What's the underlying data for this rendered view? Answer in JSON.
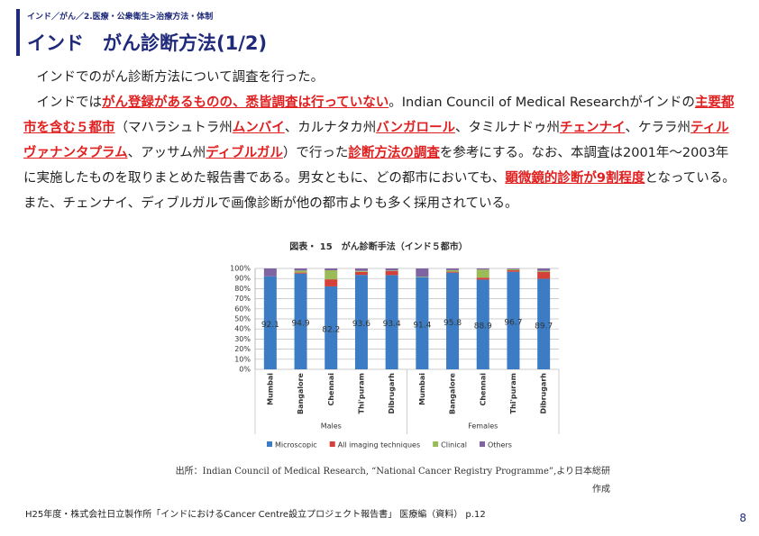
{
  "breadcrumb": "インド／がん／2.医療・公衆衛生>治療方法・体制",
  "title": "インド　がん診断方法(1/2)",
  "paragraphs": [
    [
      "インドでのがん診断方法について調査を行った。"
    ],
    [
      "インドでは",
      {
        "text": "がん登録があるものの、悉皆調査は行っていない",
        "emphasis": true
      },
      "。Indian Council of Medical Researchがインドの",
      {
        "text": "主要都市を含む５都市",
        "emphasis": true
      },
      "（マハラシュトラ州",
      {
        "text": "ムンバイ",
        "emphasis": true
      },
      "、カルナタカ州",
      {
        "text": "バンガロール",
        "emphasis": true
      },
      "、タミルナドゥ州",
      {
        "text": "チェンナイ",
        "emphasis": true
      },
      "、ケララ州",
      {
        "text": "ティルヴァナンタプラム",
        "emphasis": true
      },
      "、アッサム州",
      {
        "text": "ディブルガル",
        "emphasis": true
      },
      "）で行った",
      {
        "text": "診断方法の調査",
        "emphasis": true
      },
      "を参考にする。なお、本調査は2001年～2003年に実施したものを取りまとめた報告書である。男女ともに、どの都市においても、",
      {
        "text": "顕微鏡的診断が9割程度",
        "emphasis": true
      },
      "となっている。また、チェンナイ、ディブルガルで画像診断が他の都市よりも多く採用されている。"
    ]
  ],
  "chart_data": {
    "type": "stacked_bar",
    "title": "図表・ 15　がん診断手法（インド５都市）",
    "categories": [
      "Mumbai",
      "Bangalore",
      "Chennai",
      "Thi'puram",
      "Dibrugarh",
      "Mumbai",
      "Bangalore",
      "Chennai",
      "Thi'puram",
      "Dibrugarh"
    ],
    "groups": [
      "Males",
      "Females"
    ],
    "series": [
      {
        "name": "Microscopic",
        "color": "#3b7cc4",
        "show_labels": true,
        "values": [
          92.1,
          94.9,
          82.2,
          93.6,
          93.4,
          91.4,
          95.8,
          88.9,
          96.7,
          89.7
        ]
      },
      {
        "name": "All imaging techniques",
        "color": "#d2413a",
        "values": [
          0,
          1,
          7,
          3,
          4,
          0,
          1,
          2,
          1.5,
          7
        ]
      },
      {
        "name": "Clinical",
        "color": "#9bbb59",
        "values": [
          0,
          2,
          9,
          1,
          0.5,
          0.5,
          1.5,
          8,
          1,
          1
        ]
      },
      {
        "name": "Others",
        "color": "#8064a2",
        "values": [
          7.9,
          2.1,
          1.8,
          2.4,
          2.1,
          8.1,
          1.7,
          1.1,
          0.8,
          2.3
        ]
      }
    ],
    "ylim": [
      0,
      100
    ],
    "yticks": [
      {
        "value": 0,
        "label": "0%"
      },
      {
        "value": 10,
        "label": "10%"
      },
      {
        "value": 20,
        "label": "20%"
      },
      {
        "value": 30,
        "label": "30%"
      },
      {
        "value": 40,
        "label": "40%"
      },
      {
        "value": 50,
        "label": "50%"
      },
      {
        "value": 60,
        "label": "60%"
      },
      {
        "value": 70,
        "label": "70%"
      },
      {
        "value": 80,
        "label": "80%"
      },
      {
        "value": 90,
        "label": "90%"
      },
      {
        "value": 100,
        "label": "100%"
      }
    ],
    "grid": true
  },
  "source": "出所：Indian Council of Medical Research, “National Cancer Registry Programme”,より日本総研作成",
  "footer": "H25年度・株式会社日立製作所「インドにおけるCancer Centre設立プロジェクト報告書」 医療編（資料） p.12",
  "page_number": "8"
}
